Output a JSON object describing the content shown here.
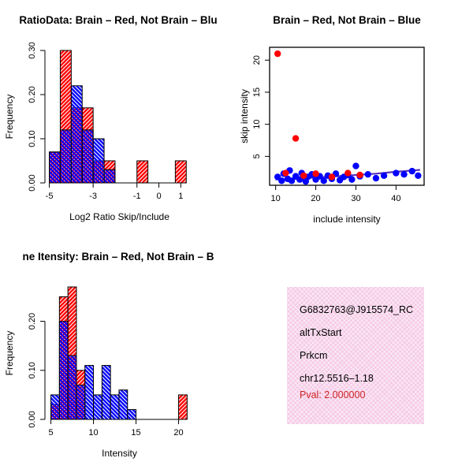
{
  "colors": {
    "red": "#ff0000",
    "blue": "#0000ff",
    "fit_line": "#5533bb",
    "pval_text": "#cc2222",
    "info_box_bg": "#f5cbe7",
    "axis": "#000000"
  },
  "chart_data": [
    {
      "id": "log2_ratio_hist",
      "type": "bar",
      "title": "RatioData: Brain – Red, Not Brain – Blu",
      "xlabel": "Log2 Ratio Skip/Include",
      "ylabel": "Frequency",
      "xlim": [
        -5.2,
        1.6
      ],
      "ylim": [
        0,
        0.3
      ],
      "xticks": [
        -5,
        -3,
        -1,
        0,
        1
      ],
      "xtick_labels": [
        "-5",
        "-3",
        "-1",
        "0",
        "1"
      ],
      "yticks": [
        0,
        0.1,
        0.2,
        0.3
      ],
      "ytick_labels": [
        "0.00",
        "0.10",
        "0.20",
        "0.30"
      ],
      "bin_width": 0.5,
      "series": [
        {
          "name": "Brain",
          "color": "#ff0000",
          "bins": [
            [
              -5,
              0.07
            ],
            [
              -4.5,
              0.3
            ],
            [
              -4,
              0.17
            ],
            [
              -3.5,
              0.17
            ],
            [
              -3,
              0.05
            ],
            [
              -2.5,
              0.05
            ],
            [
              -1,
              0.05
            ],
            [
              0.75,
              0.05
            ]
          ]
        },
        {
          "name": "Not Brain",
          "color": "#0000ff",
          "bins": [
            [
              -5,
              0.07
            ],
            [
              -4.5,
              0.12
            ],
            [
              -4,
              0.22
            ],
            [
              -3.5,
              0.12
            ],
            [
              -3,
              0.1
            ],
            [
              -2.5,
              0.03
            ]
          ]
        }
      ]
    },
    {
      "id": "intensity_scatter",
      "type": "scatter",
      "title": "Brain – Red, Not Brain – Blue",
      "xlabel": "include intensity",
      "ylabel": "skip intensity",
      "xlim": [
        8.5,
        47
      ],
      "ylim": [
        0.5,
        22
      ],
      "xticks": [
        10,
        20,
        30,
        40
      ],
      "xtick_labels": [
        "10",
        "20",
        "30",
        "40"
      ],
      "yticks": [
        5,
        10,
        15,
        20
      ],
      "ytick_labels": [
        "5",
        "10",
        "15",
        "20"
      ],
      "series": [
        {
          "name": "Brain",
          "color": "#ff0000",
          "points": [
            [
              10.5,
              21
            ],
            [
              15,
              7.8
            ],
            [
              12.5,
              2.4
            ],
            [
              17,
              2.0
            ],
            [
              20,
              2.3
            ],
            [
              24,
              1.8
            ],
            [
              28,
              2.4
            ],
            [
              31,
              2.1
            ]
          ]
        },
        {
          "name": "Not Brain",
          "color": "#0000ff",
          "points": [
            [
              10.5,
              1.8
            ],
            [
              11.5,
              1.2
            ],
            [
              12,
              2.3
            ],
            [
              13,
              1.5
            ],
            [
              13.5,
              2.8
            ],
            [
              14,
              1.2
            ],
            [
              15,
              1.9
            ],
            [
              16,
              1.4
            ],
            [
              16.5,
              2.4
            ],
            [
              17.5,
              1.1
            ],
            [
              18,
              1.8
            ],
            [
              19,
              2.2
            ],
            [
              20,
              1.4
            ],
            [
              21,
              1.9
            ],
            [
              22,
              1.2
            ],
            [
              23,
              2.0
            ],
            [
              24,
              1.5
            ],
            [
              25,
              2.3
            ],
            [
              26,
              1.3
            ],
            [
              27,
              1.8
            ],
            [
              28,
              2.1
            ],
            [
              29,
              1.4
            ],
            [
              30,
              3.5
            ],
            [
              31,
              1.9
            ],
            [
              33,
              2.2
            ],
            [
              35,
              1.6
            ],
            [
              37,
              2.0
            ],
            [
              40,
              2.4
            ],
            [
              42,
              2.2
            ],
            [
              44,
              2.7
            ],
            [
              45.5,
              2.0
            ]
          ]
        }
      ],
      "line": {
        "color": "#5533bb",
        "points": [
          [
            10,
            1.4
          ],
          [
            15,
            1.5
          ],
          [
            20,
            1.7
          ],
          [
            25,
            1.9
          ],
          [
            30,
            2.1
          ],
          [
            35,
            2.3
          ],
          [
            40,
            2.6
          ],
          [
            46,
            2.9
          ]
        ]
      }
    },
    {
      "id": "gene_intensity_hist",
      "type": "bar",
      "title": "ne Itensity: Brain – Red, Not Brain – B",
      "xlabel": "Intensity",
      "ylabel": "Frequency",
      "xlim": [
        4.3,
        21.8
      ],
      "ylim": [
        0,
        0.27
      ],
      "xticks": [
        5,
        10,
        15,
        20
      ],
      "xtick_labels": [
        "5",
        "10",
        "15",
        "20"
      ],
      "yticks": [
        0,
        0.1,
        0.2
      ],
      "ytick_labels": [
        "0.00",
        "0.10",
        "0.20"
      ],
      "bin_width": 1,
      "series": [
        {
          "name": "Brain",
          "color": "#ff0000",
          "bins": [
            [
              5,
              0.03
            ],
            [
              6,
              0.25
            ],
            [
              7,
              0.27
            ],
            [
              8,
              0.1
            ],
            [
              20,
              0.05
            ]
          ]
        },
        {
          "name": "Not Brain",
          "color": "#0000ff",
          "bins": [
            [
              5,
              0.05
            ],
            [
              6,
              0.2
            ],
            [
              7,
              0.13
            ],
            [
              8,
              0.07
            ],
            [
              9,
              0.11
            ],
            [
              10,
              0.05
            ],
            [
              11,
              0.11
            ],
            [
              12,
              0.05
            ],
            [
              13,
              0.06
            ],
            [
              14,
              0.02
            ]
          ]
        }
      ]
    }
  ],
  "info_box": {
    "lines": [
      "G6832763@J915574_RC",
      "altTxStart",
      "Prkcm",
      "chr12.5516–1.18",
      "Pval: 2.000000"
    ]
  }
}
